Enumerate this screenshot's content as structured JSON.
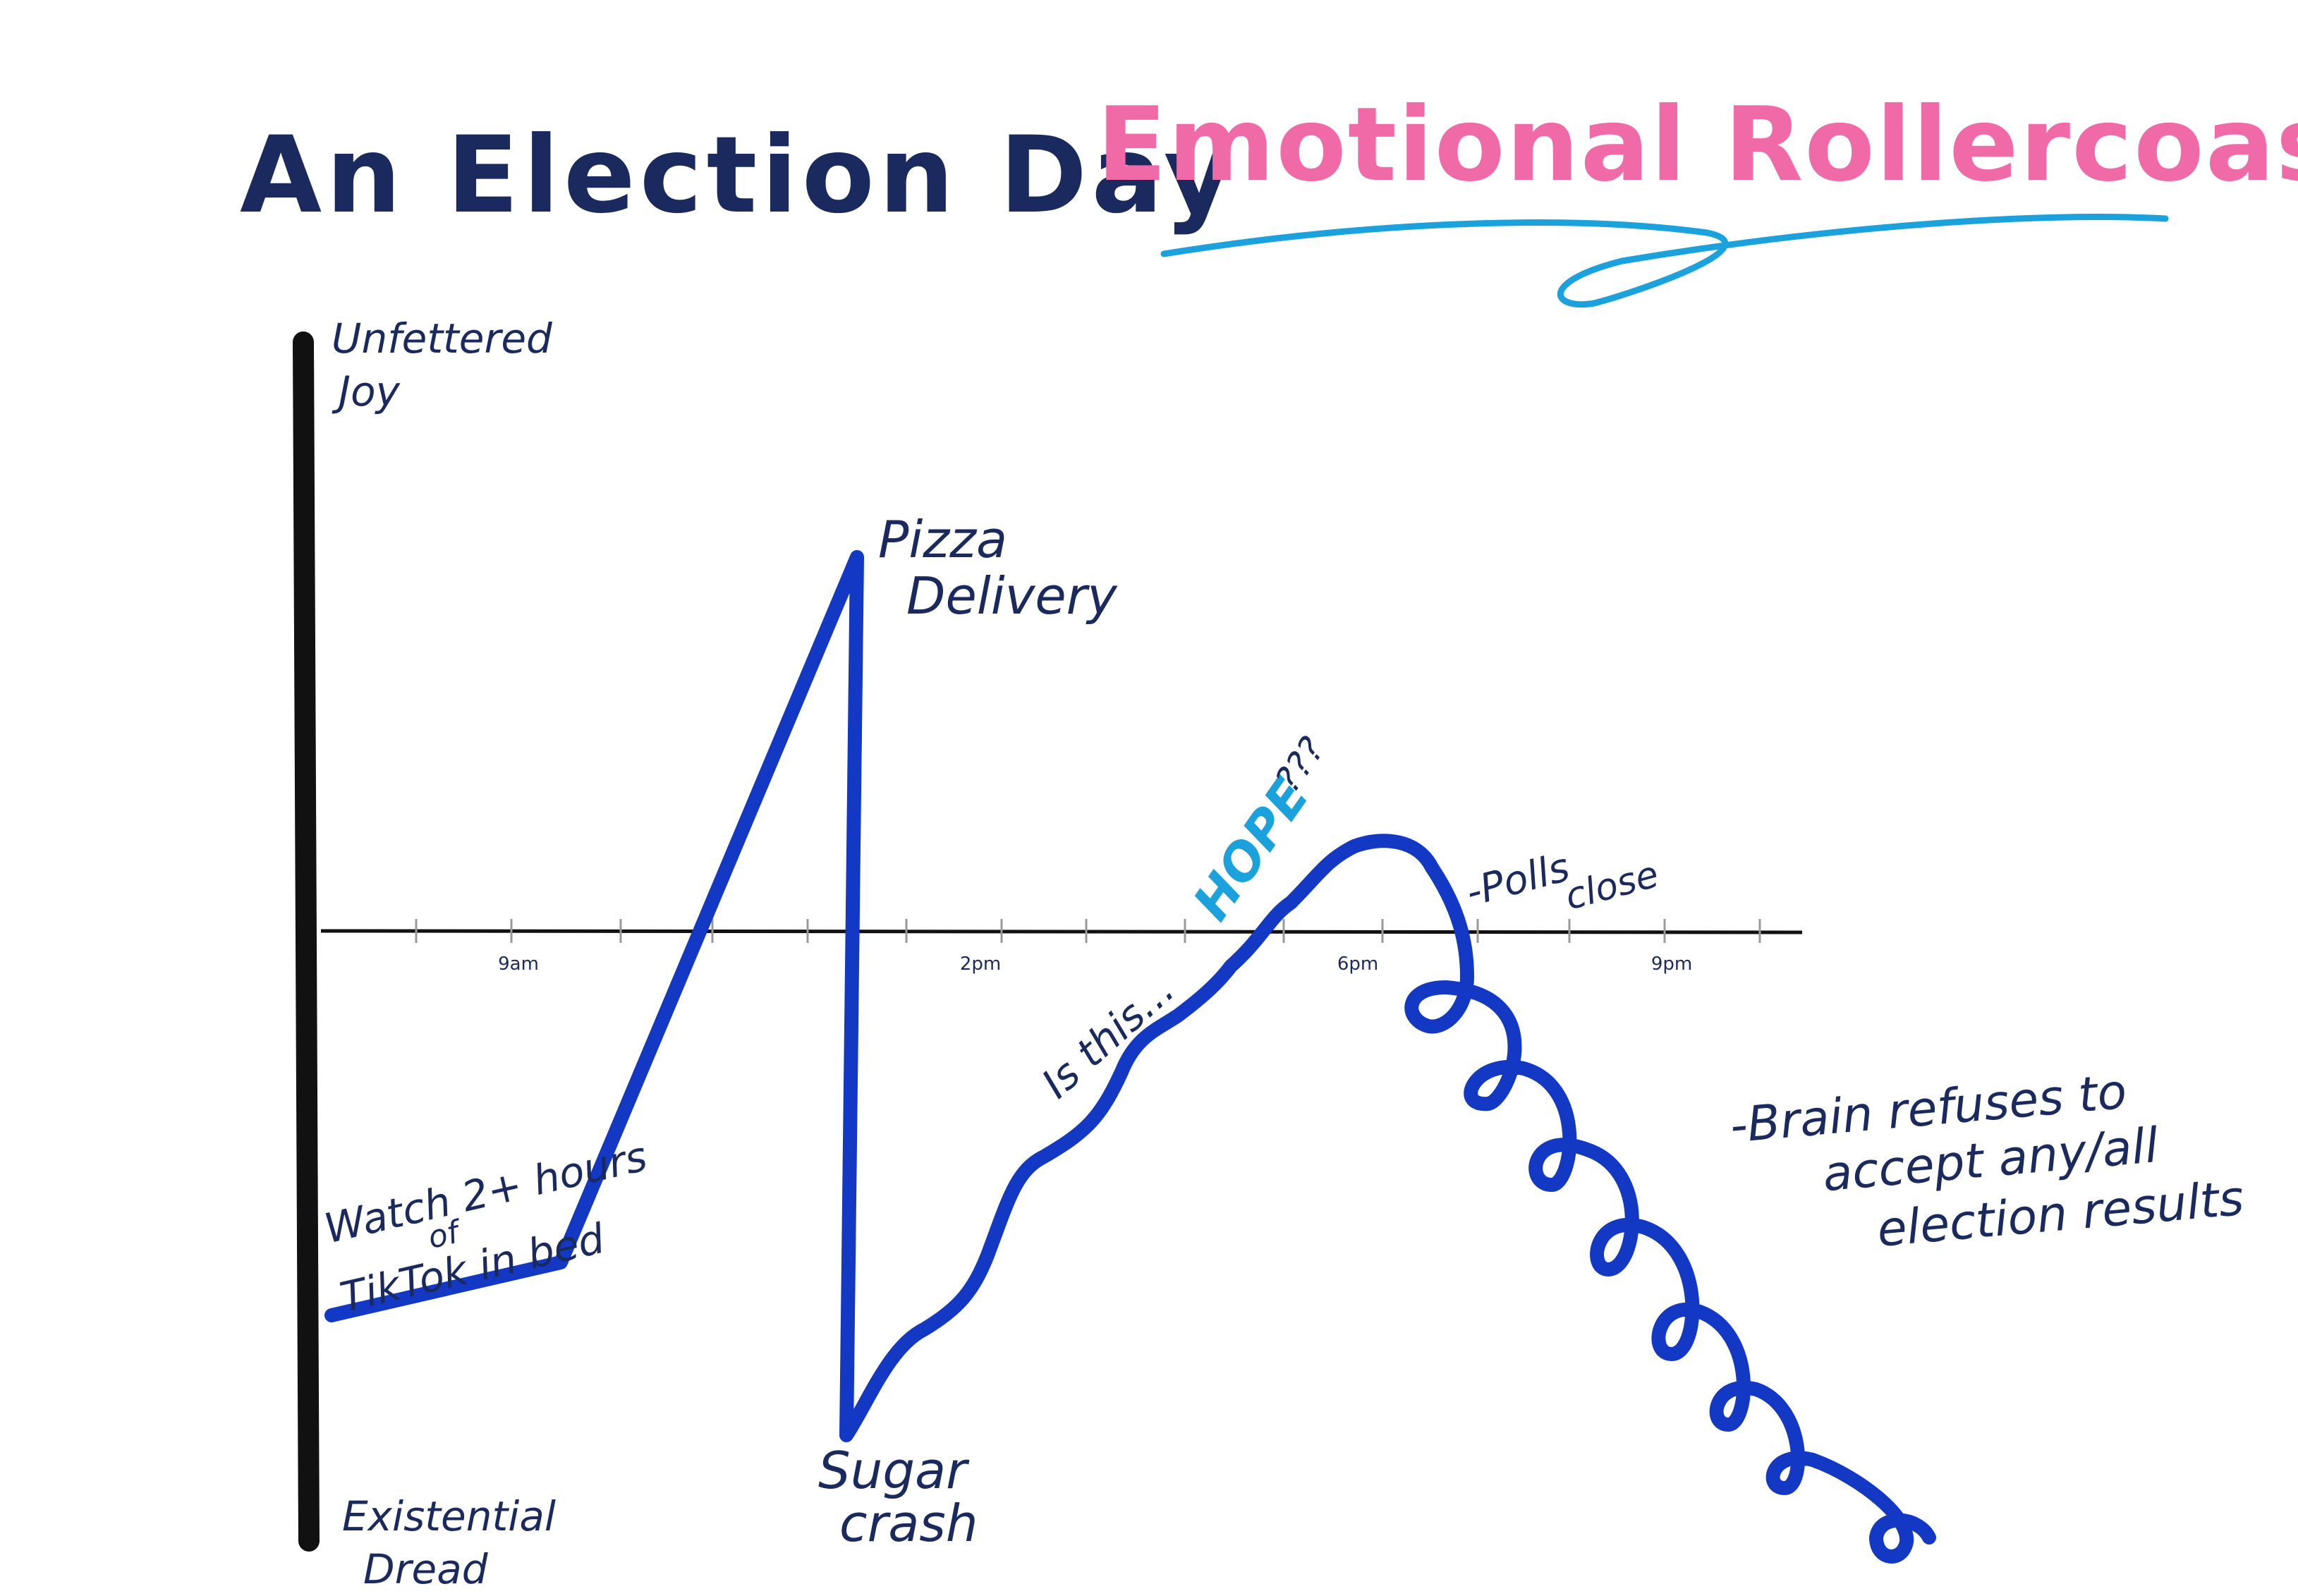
{
  "title": {
    "part1": "An Election Day",
    "part2": "Emotional Rollercoaster",
    "part1_color": "#1b2a5e",
    "part2_color": "#f06aa8",
    "underline_color": "#1ba2dc"
  },
  "chart_data": {
    "type": "line",
    "line_color": "#1238c4",
    "axis_color": "#111111",
    "y_top_label": [
      "Unfettered",
      "Joy"
    ],
    "y_bottom_label": [
      "Existential",
      "Dread"
    ],
    "x_ticks": [
      "9am",
      "2pm",
      "6pm",
      "9pm"
    ],
    "annotations": {
      "start": [
        "Watch 2+ hours",
        "of",
        "TikTok in bed"
      ],
      "peak": [
        "Pizza",
        "Delivery"
      ],
      "crash": [
        "Sugar",
        "crash"
      ],
      "rise": "Is this...",
      "hope": "HOPE",
      "hope_suffix": "???",
      "polls": [
        "-Polls",
        "close"
      ],
      "spiral": [
        "-Brain refuses to",
        "accept any/all",
        "election results"
      ]
    },
    "hope_color": "#1ba2dc",
    "ink_color": "#1b2a5e"
  }
}
